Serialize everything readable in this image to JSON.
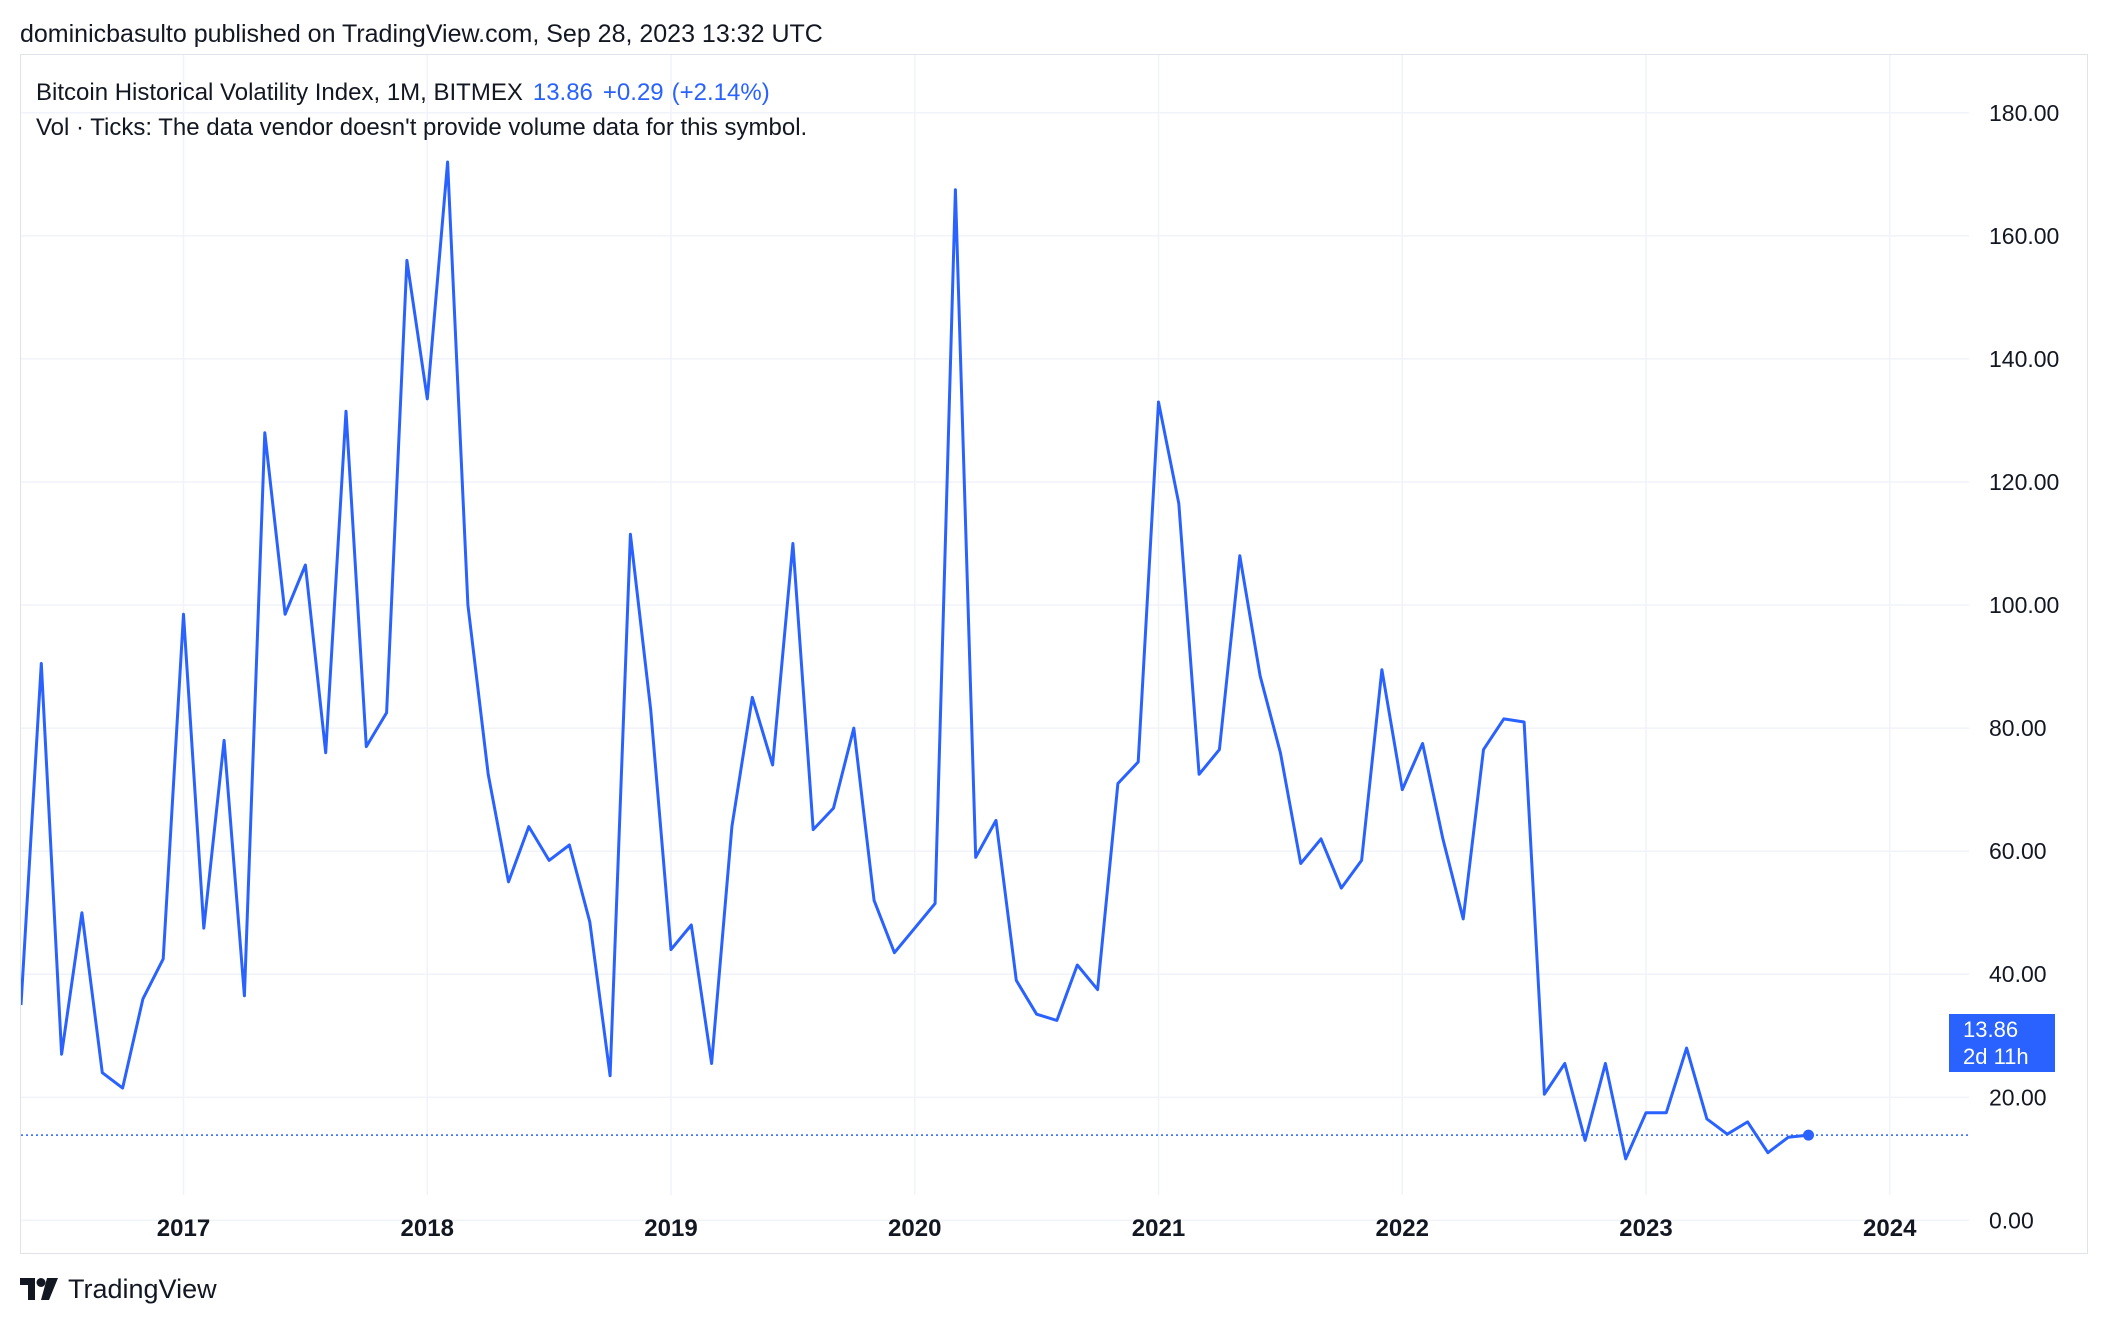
{
  "header": {
    "published_line": "dominicbasulto published on TradingView.com, Sep 28, 2023 13:32 UTC"
  },
  "legend": {
    "symbol_line": "Bitcoin Historical Volatility Index, 1M, BITMEX",
    "last": "13.86",
    "change": "+0.29",
    "change_pct": "(+2.14%)",
    "volume_note": "Vol · Ticks: The data vendor doesn't provide volume data for this symbol."
  },
  "price_tag": {
    "value": "13.86",
    "countdown": "2d 11h"
  },
  "footer": {
    "brand": "TradingView"
  },
  "colors": {
    "line": "#2962ff",
    "grid": "#f0f3fa",
    "axis_text": "#131722"
  },
  "icons": {
    "brand_logo": "tradingview-logo-icon"
  },
  "chart_data": {
    "type": "line",
    "title": "",
    "xlabel": "",
    "ylabel": "",
    "grid": true,
    "y_axis_side": "right",
    "ylim": [
      -4,
      185
    ],
    "xlim": [
      "2016-05",
      "2024-05"
    ],
    "y_ticks": [
      "0.00",
      "20.00",
      "40.00",
      "60.00",
      "80.00",
      "100.00",
      "120.00",
      "140.00",
      "160.00",
      "180.00"
    ],
    "x_ticks": [
      "2017",
      "2018",
      "2019",
      "2020",
      "2021",
      "2022",
      "2023",
      "2024"
    ],
    "series": [
      {
        "x": [
          "2016-05",
          "2016-06",
          "2016-07",
          "2016-08",
          "2016-09",
          "2016-10",
          "2016-11",
          "2016-12",
          "2017-01",
          "2017-02",
          "2017-03",
          "2017-04",
          "2017-05",
          "2017-06",
          "2017-07",
          "2017-08",
          "2017-09",
          "2017-10",
          "2017-11",
          "2017-12",
          "2018-01",
          "2018-02",
          "2018-03",
          "2018-04",
          "2018-05",
          "2018-06",
          "2018-07",
          "2018-08",
          "2018-09",
          "2018-10",
          "2018-11",
          "2018-12",
          "2019-01",
          "2019-02",
          "2019-03",
          "2019-04",
          "2019-05",
          "2019-06",
          "2019-07",
          "2019-08",
          "2019-09",
          "2019-10",
          "2019-11",
          "2019-12",
          "2020-01",
          "2020-02",
          "2020-03",
          "2020-04",
          "2020-05",
          "2020-06",
          "2020-07",
          "2020-08",
          "2020-09",
          "2020-10",
          "2020-11",
          "2020-12",
          "2021-01",
          "2021-02",
          "2021-03",
          "2021-04",
          "2021-05",
          "2021-06",
          "2021-07",
          "2021-08",
          "2021-09",
          "2021-10",
          "2021-11",
          "2021-12",
          "2022-01",
          "2022-02",
          "2022-03",
          "2022-04",
          "2022-05",
          "2022-06",
          "2022-07",
          "2022-08",
          "2022-09",
          "2022-10",
          "2022-11",
          "2022-12",
          "2023-01",
          "2023-02",
          "2023-03",
          "2023-04",
          "2023-05",
          "2023-06",
          "2023-07",
          "2023-08",
          "2023-09"
        ],
        "values": [
          35,
          90.5,
          27,
          50,
          24,
          21.5,
          36,
          42.5,
          98.5,
          47.5,
          78,
          36.5,
          128,
          98.5,
          106.5,
          76,
          131.5,
          77,
          82.5,
          156,
          133.5,
          172,
          100,
          72.5,
          55,
          64,
          58.5,
          61,
          48.5,
          23.5,
          111.5,
          83,
          44,
          48,
          25.5,
          64,
          85,
          74,
          110,
          63.5,
          67,
          80,
          52,
          43.5,
          47.5,
          51.5,
          167.5,
          59,
          65,
          39,
          33.5,
          32.5,
          41.5,
          37.5,
          71,
          74.5,
          133,
          116.5,
          72.5,
          76.5,
          108,
          88.5,
          76,
          58,
          62,
          54,
          58.5,
          89.5,
          70,
          77.5,
          62,
          49,
          76.5,
          81.5,
          81,
          20.5,
          25.5,
          13,
          25.5,
          10,
          17.5,
          17.5,
          28,
          16.5,
          14,
          16,
          11,
          13.5,
          13.86
        ]
      }
    ],
    "last_value": 13.86
  }
}
